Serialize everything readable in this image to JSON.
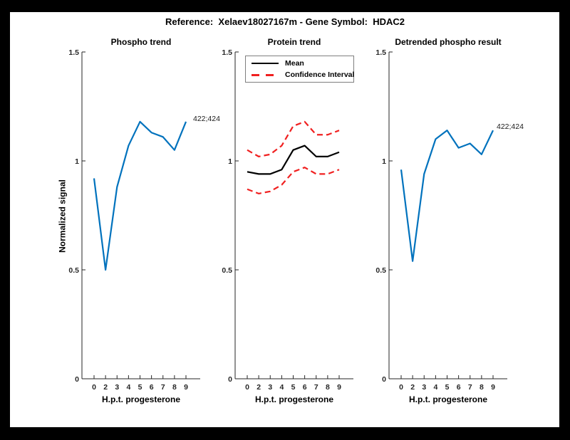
{
  "figure": {
    "title": "Reference:  Xelaev18027167m - Gene Symbol:  HDAC2",
    "border_color": "#000000",
    "background_color": "#ffffff"
  },
  "axis_color": "#262626",
  "chart_data": [
    {
      "type": "line",
      "title": "Phospho trend",
      "xlabel": "H.p.t. progesterone",
      "ylabel": "Normalized signal",
      "categories": [
        "0",
        "2",
        "3",
        "4",
        "5",
        "6",
        "7",
        "8",
        "9"
      ],
      "ylim": [
        0,
        1.5
      ],
      "y_ticks": [
        0,
        0.5,
        1,
        1.5
      ],
      "y_tick_labels": [
        "0",
        "0.5",
        "1",
        "1.5"
      ],
      "grid": false,
      "series": [
        {
          "name": "phospho-signal",
          "color": "#0072BD",
          "dash": false,
          "values": [
            0.92,
            0.5,
            0.88,
            1.07,
            1.18,
            1.13,
            1.11,
            1.05,
            1.18
          ]
        }
      ],
      "annotation": {
        "text": "422;424",
        "attach": "last-point"
      }
    },
    {
      "type": "line",
      "title": "Protein trend",
      "xlabel": "H.p.t. progesterone",
      "ylabel": "",
      "categories": [
        "0",
        "2",
        "3",
        "4",
        "5",
        "6",
        "7",
        "8",
        "9"
      ],
      "ylim": [
        0,
        1.5
      ],
      "y_ticks": [
        0,
        0.5,
        1,
        1.5
      ],
      "y_tick_labels": [
        "0",
        "0.5",
        "1",
        "1.5"
      ],
      "grid": false,
      "series": [
        {
          "name": "mean",
          "color": "#000000",
          "dash": false,
          "values": [
            0.95,
            0.94,
            0.94,
            0.96,
            1.05,
            1.07,
            1.02,
            1.02,
            1.04
          ]
        },
        {
          "name": "confidence-upper",
          "color": "#f02020",
          "dash": true,
          "values": [
            1.05,
            1.02,
            1.03,
            1.07,
            1.16,
            1.18,
            1.12,
            1.12,
            1.14
          ]
        },
        {
          "name": "confidence-lower",
          "color": "#f02020",
          "dash": true,
          "values": [
            0.87,
            0.85,
            0.86,
            0.89,
            0.95,
            0.97,
            0.94,
            0.94,
            0.96
          ]
        }
      ],
      "legend": {
        "position": "top-left",
        "entries": [
          {
            "label": "Mean",
            "color": "#000000",
            "dash": false
          },
          {
            "label": "Confidence Interval",
            "color": "#f02020",
            "dash": true
          }
        ]
      }
    },
    {
      "type": "line",
      "title": "Detrended phospho result",
      "xlabel": "H.p.t. progesterone",
      "ylabel": "",
      "categories": [
        "0",
        "2",
        "3",
        "4",
        "5",
        "6",
        "7",
        "8",
        "9"
      ],
      "ylim": [
        0,
        1.5
      ],
      "y_ticks": [
        0,
        0.5,
        1,
        1.5
      ],
      "y_tick_labels": [
        "0",
        "0.5",
        "1",
        "1.5"
      ],
      "grid": false,
      "series": [
        {
          "name": "detrended-phospho-signal",
          "color": "#0072BD",
          "dash": false,
          "values": [
            0.96,
            0.54,
            0.94,
            1.1,
            1.14,
            1.06,
            1.08,
            1.03,
            1.14
          ]
        }
      ],
      "annotation": {
        "text": "422;424",
        "attach": "last-point"
      }
    }
  ]
}
